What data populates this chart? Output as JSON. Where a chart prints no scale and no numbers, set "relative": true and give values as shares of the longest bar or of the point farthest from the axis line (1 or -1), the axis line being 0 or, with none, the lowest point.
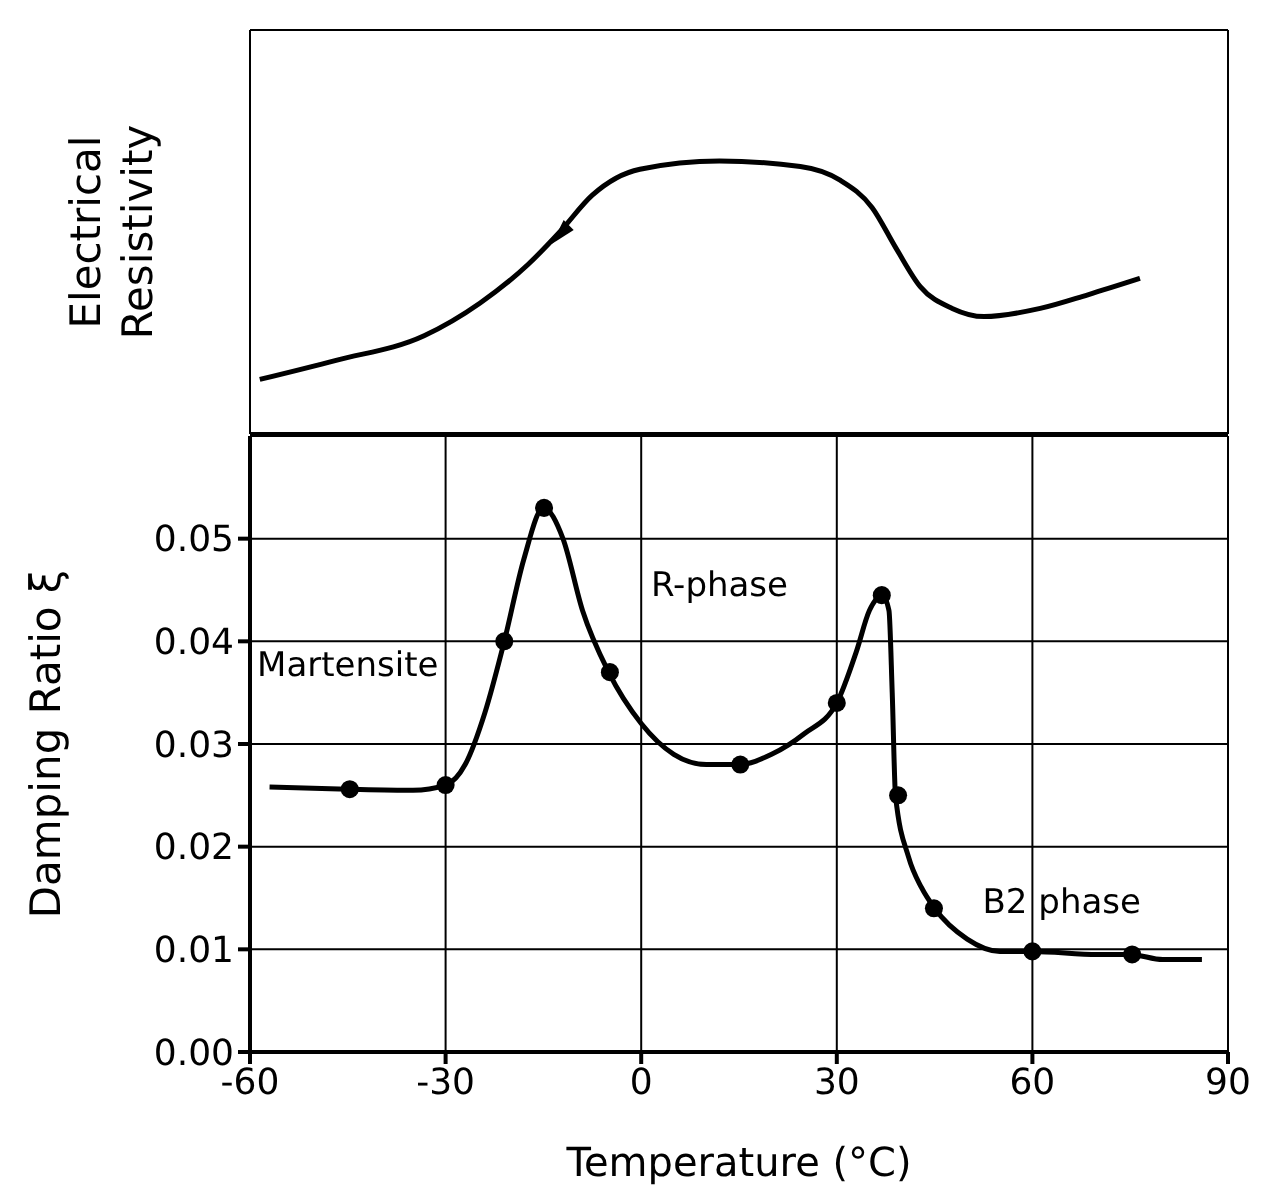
{
  "chart_data": [
    {
      "type": "line",
      "relative": true,
      "ylabel": "Electrical Resistivity",
      "xlim": [
        -60,
        90
      ],
      "xticks": [
        -60,
        -30,
        0,
        30,
        60,
        90
      ],
      "grid": "x",
      "tick_labels": false,
      "marker": "none",
      "line_style": "solid",
      "series": [
        {
          "color": "#000000",
          "x": [
            -58.5,
            -46.8,
            -33.3,
            -24.7,
            -17.4,
            -12.5,
            -7.5,
            -0.2,
            12,
            24.4,
            30.5,
            35.4,
            39.1,
            42.8,
            47.7,
            52.6,
            61.2,
            68.5,
            76.5
          ],
          "values": [
            0.2,
            0.27,
            0.36,
            0.48,
            0.62,
            0.74,
            0.875,
            0.97,
            1,
            0.98,
            0.93,
            0.83,
            0.68,
            0.54,
            0.46,
            0.43,
            0.46,
            0.51,
            0.57
          ]
        }
      ]
    },
    {
      "type": "line",
      "xlabel": "Temperature (°C)",
      "ylabel": "Damping Ratio ξ",
      "xlim": [
        -60,
        90
      ],
      "xticks": [
        -60,
        -30,
        0,
        30,
        60,
        90
      ],
      "ylim": [
        0,
        0.06
      ],
      "yticks": [
        {
          "value": 0,
          "label": "0.00"
        },
        0.01,
        0.02,
        0.03,
        0.04,
        0.05
      ],
      "tick_labels": [
        "x",
        "y"
      ],
      "grid": true,
      "line_style": "solid",
      "series": [
        {
          "color": "#000000",
          "marker": "none",
          "x": [
            -57,
            -45,
            -35,
            -30,
            -27,
            -24,
            -21,
            -18,
            -15,
            -12,
            -9,
            -5,
            0,
            5,
            10,
            15,
            20,
            25,
            30,
            33,
            35,
            37,
            38,
            38.5,
            39,
            41,
            43,
            45,
            50,
            55,
            60,
            70,
            75,
            80,
            86
          ],
          "values": [
            0.0258,
            0.0256,
            0.0255,
            0.026,
            0.028,
            0.033,
            0.04,
            0.048,
            0.053,
            0.05,
            0.043,
            0.037,
            0.032,
            0.029,
            0.028,
            0.028,
            0.029,
            0.031,
            0.034,
            0.039,
            0.043,
            0.0445,
            0.043,
            0.035,
            0.025,
            0.019,
            0.016,
            0.014,
            0.011,
            0.0098,
            0.0098,
            0.0095,
            0.0095,
            0.009,
            0.009
          ]
        },
        {
          "type": "scatter",
          "color": "#000000",
          "marker": "circle",
          "x": [
            -44.7,
            -30,
            -21,
            -14.9,
            -4.8,
            15.2,
            30,
            36.9,
            39.4,
            44.9,
            60,
            75.3
          ],
          "values": [
            0.0256,
            0.026,
            0.04,
            0.053,
            0.037,
            0.028,
            0.034,
            0.0445,
            0.025,
            0.014,
            0.0098,
            0.0095
          ]
        }
      ],
      "annotations": [
        "Martensite",
        "R-phase",
        "B2 phase"
      ]
    }
  ]
}
